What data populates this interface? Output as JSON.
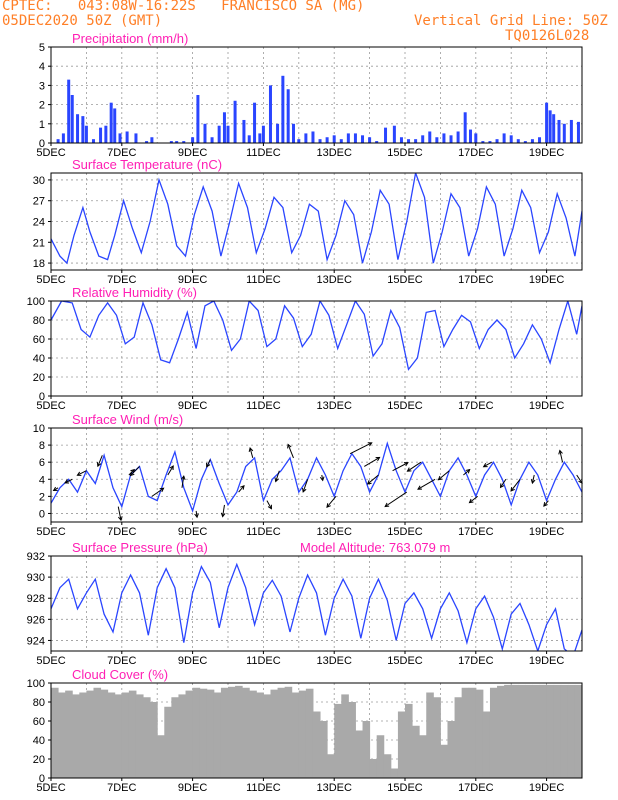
{
  "header": {
    "line1": "CPTEC:   043:08W-16:22S   FRANCISCO SA (MG)",
    "line2": "05DEC2020 50Z (GMT)",
    "right1": "Vertical Grid Line: 50Z",
    "right2": "TQ0126L028"
  },
  "colors": {
    "header": "#ff7f27",
    "title": "#ff1fb4",
    "series": "#2a45ff",
    "bars": "#2a45ff",
    "cloud": "#a9a9a9",
    "grid": "#9a9a9a",
    "axis": "#000000"
  },
  "chart_data": [
    {
      "type": "bar",
      "title": "Precipitation (mm/h)",
      "xlabel": "",
      "ylabel": "",
      "ylim": [
        0,
        5
      ],
      "yticks": [
        0,
        1,
        2,
        3,
        4,
        5
      ],
      "xticks": [
        "5DEC",
        "7DEC",
        "9DEC",
        "11DEC",
        "13DEC",
        "15DEC",
        "17DEC",
        "19DEC"
      ],
      "x_day_range": [
        5,
        20
      ],
      "x": [
        5.2,
        5.35,
        5.5,
        5.6,
        5.75,
        5.9,
        6.0,
        6.2,
        6.4,
        6.55,
        6.7,
        6.8,
        6.95,
        7.15,
        7.4,
        7.7,
        7.85,
        8.4,
        8.55,
        8.75,
        9.0,
        9.15,
        9.35,
        9.55,
        9.75,
        9.9,
        10.0,
        10.2,
        10.45,
        10.6,
        10.75,
        10.9,
        11.0,
        11.2,
        11.4,
        11.55,
        11.7,
        11.85,
        12.0,
        12.2,
        12.4,
        12.6,
        12.8,
        13.0,
        13.2,
        13.4,
        13.6,
        13.8,
        14.0,
        14.2,
        14.45,
        14.7,
        14.9,
        15.1,
        15.3,
        15.5,
        15.7,
        15.9,
        16.1,
        16.3,
        16.5,
        16.7,
        16.85,
        17.0,
        17.2,
        17.4,
        17.6,
        17.8,
        18.0,
        18.2,
        18.4,
        18.6,
        18.8,
        19.0,
        19.1,
        19.2,
        19.35,
        19.5,
        19.7,
        19.9
      ],
      "values": [
        0.2,
        0.5,
        3.3,
        2.5,
        1.5,
        1.4,
        0.9,
        0.2,
        0.8,
        0.9,
        2.1,
        1.8,
        0.5,
        0.6,
        0.5,
        0.1,
        0.3,
        0.1,
        0.1,
        0.1,
        0.3,
        2.5,
        1.0,
        0.3,
        0.9,
        1.6,
        0.9,
        2.2,
        1.2,
        0.4,
        2.1,
        0.5,
        0.9,
        3.0,
        1.0,
        3.5,
        2.8,
        1.0,
        0.2,
        0.5,
        0.6,
        0.2,
        0.3,
        0.4,
        0.2,
        0.5,
        0.5,
        0.4,
        0.3,
        0.1,
        0.8,
        0.9,
        0.3,
        0.2,
        0.2,
        0.4,
        0.6,
        0.3,
        0.5,
        0.4,
        0.6,
        1.6,
        0.7,
        0.5,
        0.1,
        0.1,
        0.2,
        0.5,
        0.4,
        0.2,
        0.1,
        0.2,
        0.3,
        2.1,
        1.7,
        1.5,
        1.2,
        1.0,
        1.2,
        1.1
      ]
    },
    {
      "type": "line",
      "title": "Surface Temperature (nC)",
      "xlabel": "",
      "ylabel": "",
      "ylim": [
        17,
        31
      ],
      "yticks": [
        18,
        21,
        24,
        27,
        30
      ],
      "xticks": [
        "5DEC",
        "7DEC",
        "9DEC",
        "11DEC",
        "13DEC",
        "15DEC",
        "17DEC",
        "19DEC"
      ],
      "x_day_range": [
        5,
        20
      ],
      "series": [
        {
          "name": "",
          "x": [
            5.0,
            5.25,
            5.45,
            5.65,
            5.9,
            6.1,
            6.35,
            6.6,
            6.8,
            7.05,
            7.3,
            7.55,
            7.8,
            8.05,
            8.3,
            8.55,
            8.8,
            9.05,
            9.3,
            9.55,
            9.8,
            10.05,
            10.3,
            10.55,
            10.8,
            11.05,
            11.3,
            11.55,
            11.8,
            12.05,
            12.3,
            12.55,
            12.8,
            13.05,
            13.3,
            13.55,
            13.8,
            14.05,
            14.3,
            14.55,
            14.8,
            15.05,
            15.3,
            15.55,
            15.8,
            16.05,
            16.3,
            16.55,
            16.8,
            17.05,
            17.3,
            17.55,
            17.8,
            18.05,
            18.3,
            18.55,
            18.8,
            19.05,
            19.3,
            19.55,
            19.8,
            20.0
          ],
          "values": [
            21.5,
            19.0,
            18.0,
            22.0,
            26.0,
            22.5,
            19.0,
            18.5,
            22.0,
            27.0,
            23.0,
            19.5,
            24.0,
            30.0,
            26.5,
            20.5,
            19.0,
            25.0,
            29.0,
            25.5,
            19.0,
            24.0,
            29.5,
            26.0,
            19.5,
            23.0,
            27.5,
            26.0,
            19.5,
            22.0,
            26.5,
            25.5,
            18.5,
            22.0,
            27.0,
            25.0,
            18.0,
            22.5,
            28.5,
            26.5,
            18.5,
            24.0,
            31.0,
            27.5,
            18.0,
            22.5,
            28.0,
            26.0,
            19.0,
            23.0,
            29.0,
            26.5,
            19.0,
            23.0,
            28.5,
            26.0,
            19.5,
            22.5,
            28.0,
            24.5,
            19.0,
            25.5
          ]
        }
      ]
    },
    {
      "type": "line",
      "title": "Relative Humidity (%)",
      "xlabel": "",
      "ylabel": "",
      "ylim": [
        0,
        100
      ],
      "yticks": [
        0,
        20,
        40,
        60,
        80,
        100
      ],
      "xticks": [
        "5DEC",
        "7DEC",
        "9DEC",
        "11DEC",
        "13DEC",
        "15DEC",
        "17DEC",
        "19DEC"
      ],
      "x_day_range": [
        5,
        20
      ],
      "series": [
        {
          "name": "",
          "x": [
            5.0,
            5.3,
            5.6,
            5.85,
            6.1,
            6.35,
            6.6,
            6.85,
            7.1,
            7.35,
            7.6,
            7.85,
            8.1,
            8.35,
            8.6,
            8.85,
            9.1,
            9.35,
            9.6,
            9.85,
            10.1,
            10.35,
            10.6,
            10.85,
            11.1,
            11.35,
            11.6,
            11.85,
            12.1,
            12.35,
            12.6,
            12.85,
            13.1,
            13.35,
            13.6,
            13.85,
            14.1,
            14.35,
            14.6,
            14.85,
            15.1,
            15.35,
            15.6,
            15.85,
            16.1,
            16.35,
            16.6,
            16.85,
            17.1,
            17.35,
            17.6,
            17.85,
            18.1,
            18.35,
            18.6,
            18.85,
            19.1,
            19.35,
            19.6,
            19.85,
            20.0
          ],
          "values": [
            80,
            100,
            98,
            70,
            62,
            85,
            98,
            85,
            55,
            62,
            98,
            75,
            38,
            35,
            60,
            88,
            50,
            95,
            100,
            80,
            48,
            60,
            100,
            90,
            52,
            60,
            95,
            82,
            52,
            65,
            100,
            85,
            50,
            75,
            100,
            86,
            42,
            55,
            90,
            72,
            28,
            40,
            88,
            90,
            52,
            70,
            85,
            78,
            50,
            70,
            80,
            70,
            40,
            55,
            75,
            60,
            35,
            70,
            100,
            65,
            95
          ]
        }
      ]
    },
    {
      "type": "line",
      "title": "Surface Wind (m/s)",
      "xlabel": "",
      "ylabel": "",
      "ylim": [
        -1,
        10
      ],
      "yticks": [
        0,
        2,
        4,
        6,
        8,
        10
      ],
      "xticks": [
        "5DEC",
        "7DEC",
        "9DEC",
        "11DEC",
        "13DEC",
        "15DEC",
        "17DEC",
        "19DEC"
      ],
      "x_day_range": [
        5,
        20
      ],
      "series": [
        {
          "name": "",
          "x": [
            5.0,
            5.25,
            5.5,
            5.75,
            6.0,
            6.25,
            6.5,
            6.75,
            7.0,
            7.25,
            7.5,
            7.75,
            8.0,
            8.25,
            8.5,
            8.75,
            9.0,
            9.25,
            9.5,
            9.75,
            10.0,
            10.25,
            10.5,
            10.75,
            11.0,
            11.25,
            11.5,
            11.75,
            12.0,
            12.25,
            12.5,
            12.75,
            13.0,
            13.25,
            13.5,
            13.75,
            14.0,
            14.25,
            14.5,
            14.75,
            15.0,
            15.25,
            15.5,
            15.75,
            16.0,
            16.25,
            16.5,
            16.75,
            17.0,
            17.25,
            17.5,
            17.75,
            18.0,
            18.25,
            18.5,
            18.75,
            19.0,
            19.25,
            19.5,
            19.75,
            20.0
          ],
          "values": [
            1.2,
            3.0,
            4.0,
            2.5,
            5.0,
            3.5,
            6.8,
            3.0,
            0.8,
            4.5,
            5.5,
            2.0,
            1.5,
            4.5,
            7.2,
            3.0,
            0.3,
            4.0,
            6.3,
            3.5,
            1.0,
            2.5,
            5.5,
            6.5,
            1.5,
            4.0,
            5.0,
            6.5,
            2.5,
            4.0,
            6.5,
            4.5,
            2.0,
            5.0,
            7.0,
            5.5,
            2.5,
            4.5,
            8.2,
            5.0,
            2.5,
            5.0,
            6.0,
            4.0,
            2.0,
            5.0,
            6.5,
            4.5,
            2.0,
            4.5,
            6.0,
            4.0,
            1.0,
            4.0,
            6.0,
            4.5,
            1.5,
            4.0,
            6.0,
            4.5,
            2.5
          ]
        }
      ],
      "vectors": {
        "x": [
          5.2,
          5.6,
          6.0,
          6.45,
          6.9,
          7.2,
          7.5,
          7.85,
          8.3,
          8.7,
          9.1,
          9.5,
          9.9,
          10.3,
          10.7,
          11.1,
          11.45,
          11.85,
          12.25,
          12.65,
          13.05,
          13.45,
          13.85,
          14.25,
          14.65,
          15.05,
          15.45,
          15.85,
          16.25,
          16.65,
          17.05,
          17.45,
          17.85,
          18.25,
          18.65,
          19.05,
          19.45,
          19.85
        ],
        "u": [
          -0.5,
          -0.8,
          -1.0,
          -0.5,
          0.3,
          0.6,
          -1.0,
          1.3,
          0.6,
          0.2,
          0.1,
          -0.4,
          -0.2,
          0.6,
          -0.3,
          0.5,
          -0.4,
          -0.6,
          -0.5,
          0.1,
          -1.0,
          2.4,
          1.7,
          -1.2,
          1.7,
          -2.4,
          -1.5,
          -1.9,
          -1.2,
          0.7,
          -0.9,
          -0.9,
          -0.6,
          -1.0,
          -0.2,
          -0.5,
          -0.3,
          0.6
        ],
        "v": [
          -0.3,
          -0.4,
          -0.5,
          -1.2,
          -1.5,
          0.6,
          -1.0,
          0.9,
          1.0,
          1.3,
          -0.7,
          -0.8,
          -1.3,
          0.7,
          1.1,
          -0.9,
          -1.2,
          1.5,
          -1.4,
          -0.6,
          -1.2,
          1.2,
          1.0,
          -1.0,
          0.9,
          -1.6,
          -1.0,
          -1.1,
          -1.0,
          0.6,
          -0.7,
          -0.5,
          -0.9,
          -1.3,
          -0.9,
          -0.6,
          1.3,
          -0.9
        ]
      }
    },
    {
      "type": "line",
      "title": "Surface Pressure (hPa)",
      "annotation": "Model Altitude: 763.079 m",
      "xlabel": "",
      "ylabel": "",
      "ylim": [
        923,
        932
      ],
      "yticks": [
        924,
        926,
        928,
        930,
        932
      ],
      "xticks": [
        "5DEC",
        "7DEC",
        "9DEC",
        "11DEC",
        "13DEC",
        "15DEC",
        "17DEC",
        "19DEC"
      ],
      "x_day_range": [
        5,
        20
      ],
      "series": [
        {
          "name": "",
          "x": [
            5.0,
            5.25,
            5.5,
            5.75,
            6.0,
            6.25,
            6.5,
            6.75,
            7.0,
            7.25,
            7.5,
            7.75,
            8.0,
            8.25,
            8.5,
            8.75,
            9.0,
            9.25,
            9.5,
            9.75,
            10.0,
            10.25,
            10.5,
            10.75,
            11.0,
            11.25,
            11.5,
            11.75,
            12.0,
            12.25,
            12.5,
            12.75,
            13.0,
            13.25,
            13.5,
            13.75,
            14.0,
            14.25,
            14.5,
            14.75,
            15.0,
            15.25,
            15.5,
            15.75,
            16.0,
            16.25,
            16.5,
            16.75,
            17.0,
            17.25,
            17.5,
            17.75,
            18.0,
            18.25,
            18.5,
            18.75,
            19.0,
            19.25,
            19.5,
            19.75,
            20.0
          ],
          "values": [
            927.0,
            929.0,
            929.8,
            927.0,
            928.5,
            929.8,
            926.5,
            924.8,
            928.5,
            930.2,
            928.5,
            924.5,
            929.0,
            930.8,
            929.0,
            923.8,
            928.5,
            931.0,
            929.5,
            925.2,
            929.0,
            931.2,
            929.0,
            925.5,
            928.5,
            929.7,
            928.2,
            924.8,
            928.0,
            930.2,
            928.5,
            924.5,
            928.0,
            929.8,
            928.2,
            924.2,
            928.0,
            929.8,
            927.8,
            924.0,
            927.5,
            928.5,
            927.0,
            924.2,
            927.0,
            928.5,
            926.8,
            923.8,
            927.0,
            928.2,
            926.2,
            923.2,
            926.5,
            927.5,
            925.5,
            923.0,
            925.5,
            927.0,
            923.2,
            922.5,
            925.0
          ]
        }
      ]
    },
    {
      "type": "bar",
      "title": "Cloud Cover (%)",
      "xlabel": "",
      "ylabel": "",
      "ylim": [
        0,
        100
      ],
      "yticks": [
        0,
        20,
        40,
        60,
        80,
        100
      ],
      "xticks": [
        "5DEC",
        "7DEC",
        "9DEC",
        "11DEC",
        "13DEC",
        "15DEC",
        "17DEC",
        "19DEC"
      ],
      "x_day_range": [
        5,
        20
      ],
      "x": [
        5.1,
        5.3,
        5.5,
        5.7,
        5.9,
        6.1,
        6.3,
        6.5,
        6.7,
        6.9,
        7.1,
        7.3,
        7.5,
        7.7,
        7.9,
        8.1,
        8.3,
        8.5,
        8.7,
        8.9,
        9.1,
        9.3,
        9.5,
        9.7,
        9.9,
        10.1,
        10.3,
        10.5,
        10.7,
        10.9,
        11.1,
        11.3,
        11.5,
        11.7,
        11.9,
        12.1,
        12.3,
        12.5,
        12.7,
        12.9,
        13.1,
        13.3,
        13.5,
        13.7,
        13.9,
        14.1,
        14.3,
        14.5,
        14.7,
        14.9,
        15.1,
        15.3,
        15.5,
        15.7,
        15.9,
        16.1,
        16.3,
        16.5,
        16.7,
        16.9,
        17.1,
        17.3,
        17.5,
        17.7,
        17.9,
        18.1,
        18.3,
        18.5,
        18.7,
        18.9,
        19.1,
        19.3,
        19.5,
        19.7,
        19.9
      ],
      "values": [
        95,
        90,
        92,
        88,
        90,
        92,
        95,
        93,
        90,
        88,
        90,
        92,
        88,
        85,
        80,
        45,
        75,
        85,
        88,
        92,
        95,
        94,
        93,
        90,
        95,
        96,
        97,
        95,
        92,
        90,
        88,
        93,
        95,
        96,
        90,
        92,
        94,
        70,
        60,
        25,
        78,
        88,
        80,
        50,
        60,
        20,
        45,
        25,
        10,
        70,
        78,
        55,
        45,
        90,
        85,
        35,
        60,
        85,
        95,
        95,
        93,
        70,
        95,
        97,
        98,
        98,
        98,
        98,
        98,
        98,
        98,
        98,
        98,
        98,
        98
      ]
    }
  ]
}
